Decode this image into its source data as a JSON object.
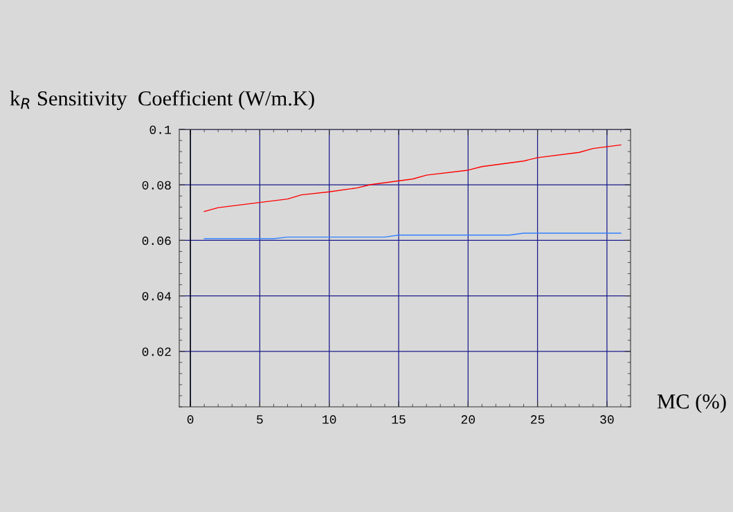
{
  "chart_data": {
    "type": "line",
    "ylabel": "k$_{R}$ Sensitivity  Coefficient (W/m.K)",
    "xlabel": "MC (%)",
    "series": [
      {
        "color": "#ff0000",
        "x": [
          1,
          2,
          7,
          8,
          10,
          12,
          13,
          16,
          17,
          20,
          21,
          24,
          25,
          28,
          29,
          31
        ],
        "values": [
          0.0704,
          0.0718,
          0.0749,
          0.0764,
          0.0775,
          0.0789,
          0.0801,
          0.0821,
          0.0835,
          0.0853,
          0.0866,
          0.0886,
          0.0898,
          0.0917,
          0.0931,
          0.0944
        ]
      },
      {
        "color": "#3380ff",
        "x": [
          1,
          6,
          7,
          14,
          15,
          23,
          24,
          31
        ],
        "values": [
          0.0606,
          0.0606,
          0.0612,
          0.0612,
          0.0619,
          0.0619,
          0.0626,
          0.0626
        ]
      }
    ],
    "xlim": [
      -0.8,
      31.7
    ],
    "ylim": [
      0,
      0.1
    ],
    "xticks": [
      0,
      5,
      10,
      15,
      20,
      25,
      30
    ],
    "yticks": [
      0.02,
      0.04,
      0.06,
      0.08,
      0.1
    ],
    "grid": true,
    "ref_lines": [
      {
        "axis": "x",
        "value": 0,
        "color": "#000000"
      }
    ]
  }
}
